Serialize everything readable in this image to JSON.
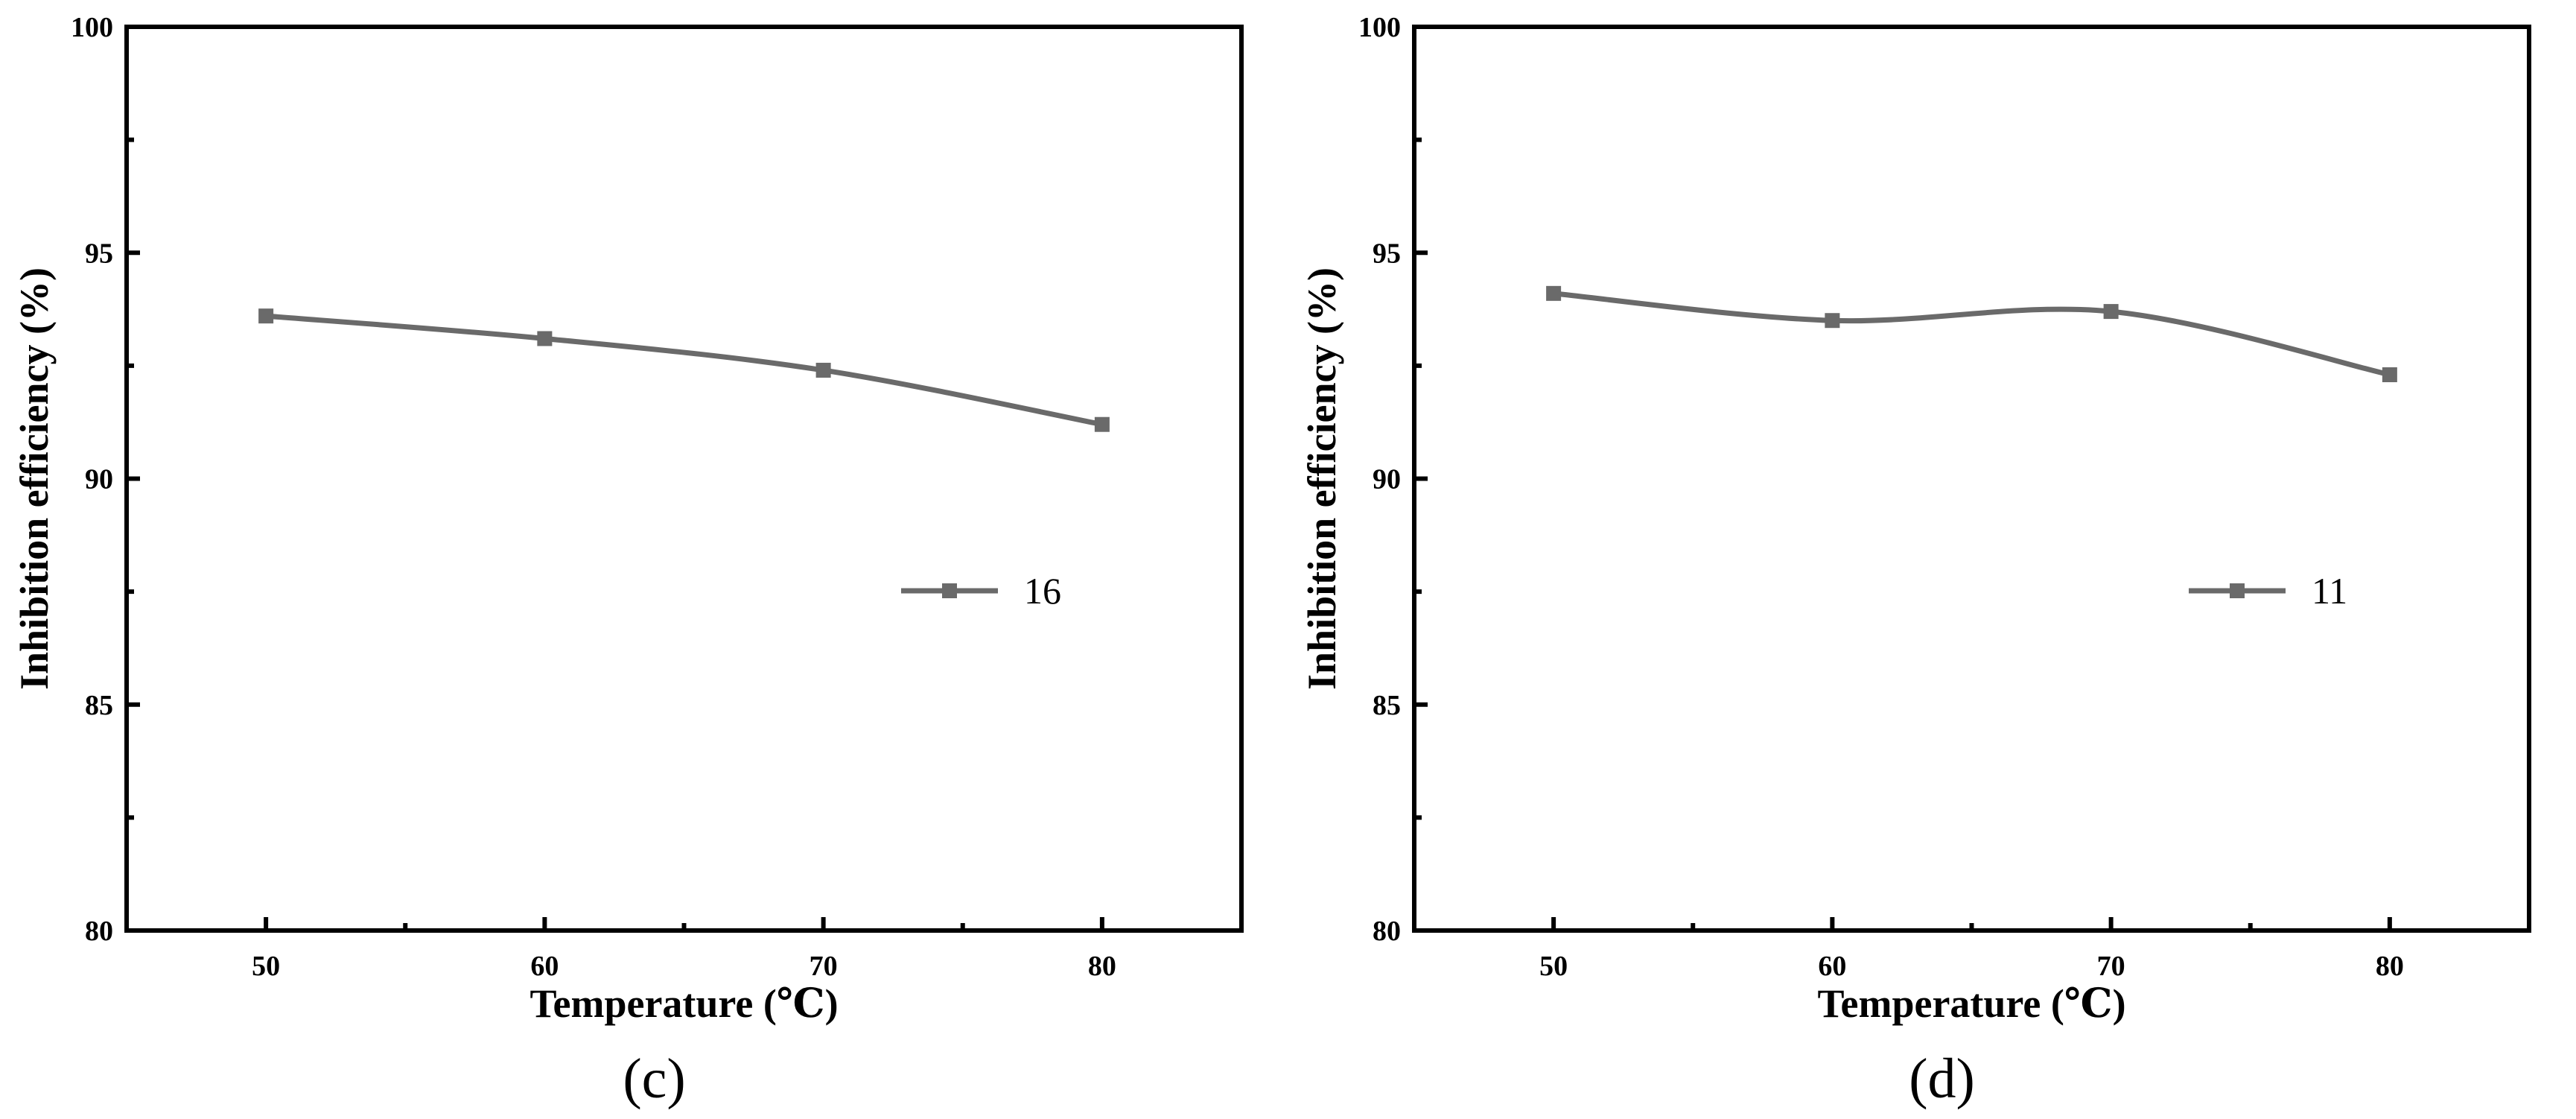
{
  "colors": {
    "series": "#6a6a6a",
    "axis": "#000000"
  },
  "chart_data": [
    {
      "type": "line",
      "panel_label": "(c)",
      "xlabel": "Temperature (℃)",
      "ylabel": "Inhibition efficiency (%)",
      "xlim": [
        45,
        85
      ],
      "ylim": [
        80,
        100
      ],
      "x_ticks": [
        50,
        60,
        70,
        80
      ],
      "y_ticks": [
        80,
        85,
        90,
        95,
        100
      ],
      "x_tick_labels": [
        "50",
        "60",
        "70",
        "80"
      ],
      "y_tick_labels": [
        "80",
        "85",
        "90",
        "95",
        "100"
      ],
      "legend_position": "right",
      "series": [
        {
          "name": "16",
          "x": [
            50,
            60,
            70,
            80
          ],
          "values": [
            93.6,
            93.1,
            92.4,
            91.2
          ],
          "marker": "square",
          "smooth": true
        }
      ]
    },
    {
      "type": "line",
      "panel_label": "(d)",
      "xlabel": "Temperature (℃)",
      "ylabel": "Inhibition efficiency (%)",
      "xlim": [
        45,
        85
      ],
      "ylim": [
        80,
        100
      ],
      "x_ticks": [
        50,
        60,
        70,
        80
      ],
      "y_ticks": [
        80,
        85,
        90,
        95,
        100
      ],
      "x_tick_labels": [
        "50",
        "60",
        "70",
        "80"
      ],
      "y_tick_labels": [
        "80",
        "85",
        "90",
        "95",
        "100"
      ],
      "legend_position": "right",
      "series": [
        {
          "name": "11",
          "x": [
            50,
            60,
            70,
            80
          ],
          "values": [
            94.1,
            93.5,
            93.7,
            92.3
          ],
          "marker": "square",
          "smooth": true
        }
      ]
    }
  ]
}
